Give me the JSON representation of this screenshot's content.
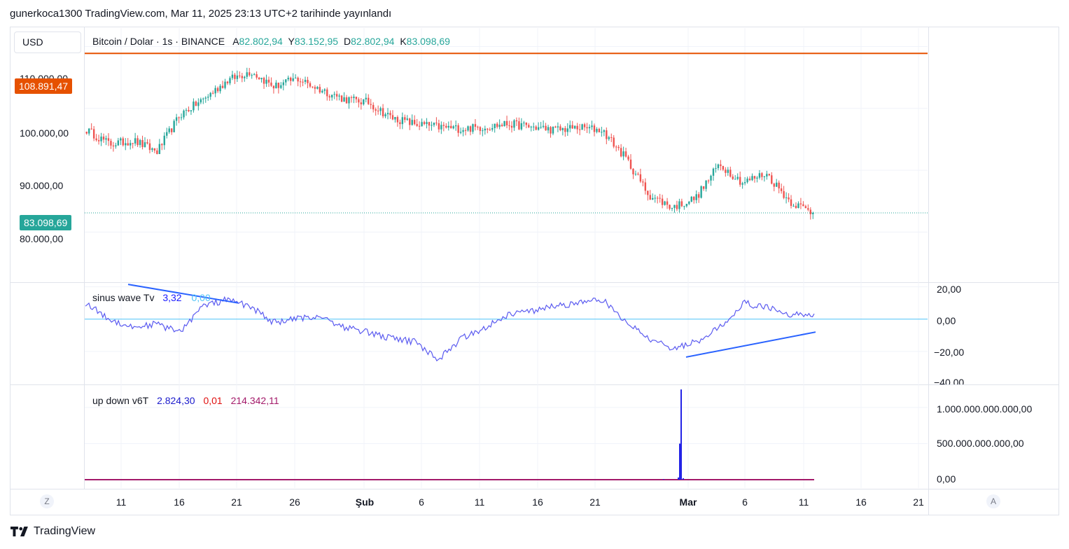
{
  "header": {
    "publisher_line": "gunerkoca1300 TradingView.com, Mar 11, 2025 23:13 UTC+2 tarihinde yayınlandı"
  },
  "currency_button": "USD",
  "price_pane": {
    "symbol": "Bitcoin / Dolar · 1s · BINANCE",
    "ohlc": [
      {
        "label": "A",
        "value": "82.802,94"
      },
      {
        "label": "Y",
        "value": "83.152,95"
      },
      {
        "label": "D",
        "value": "82.802,94"
      },
      {
        "label": "K",
        "value": "83.098,69"
      }
    ],
    "level_tag": "108.891,47",
    "last_price_tag": "83.098,69",
    "y_ticks": [
      "110.000,00",
      "100.000,00",
      "90.000,00",
      "80.000,00"
    ]
  },
  "osc_pane": {
    "name": "sinus wave Tv",
    "value1": "3,32",
    "value2": "0,00",
    "y_ticks": [
      "20,00",
      "0,00",
      "−20,00",
      "−40,00"
    ]
  },
  "vol_pane": {
    "name": "up down v6T",
    "value1": "2.824,30",
    "value2": "0,01",
    "value3": "214.342,11",
    "y_ticks": [
      "1.000.000.000.000,00",
      "500.000.000.000,00",
      "0,00"
    ]
  },
  "x_axis": {
    "labels": [
      "11",
      "16",
      "21",
      "26",
      "Şub",
      "6",
      "11",
      "16",
      "21",
      "Mar",
      "6",
      "11",
      "16",
      "21"
    ],
    "left_button": "Z",
    "right_button": "A"
  },
  "footer": {
    "brand": "TradingView"
  },
  "colors": {
    "up": "#26a69a",
    "down": "#ef5350",
    "level": "#e65100",
    "last": "#26a69a",
    "osc": "#5b5bf0",
    "zero": "#4fc3f7",
    "trend": "#2962ff",
    "vol_bar": "#2323e6",
    "vol_line": "#a31a6a"
  },
  "chart_data": [
    {
      "type": "candlestick",
      "title": "Bitcoin / Dolar · 1s · BINANCE",
      "x": [
        "Jan 8",
        "Jan 10",
        "Jan 12",
        "Jan 14",
        "Jan 16",
        "Jan 18",
        "Jan 20",
        "Jan 22",
        "Jan 24",
        "Jan 26",
        "Jan 28",
        "Jan 30",
        "Feb 1",
        "Feb 3",
        "Feb 5",
        "Feb 7",
        "Feb 9",
        "Feb 11",
        "Feb 13",
        "Feb 15",
        "Feb 17",
        "Feb 19",
        "Feb 21",
        "Feb 23",
        "Feb 25",
        "Feb 27",
        "Mar 1",
        "Mar 3",
        "Mar 5",
        "Mar 7",
        "Mar 9",
        "Mar 11"
      ],
      "close": [
        96500,
        94200,
        94800,
        93000,
        99000,
        101500,
        104500,
        106000,
        103500,
        104800,
        103000,
        101500,
        101000,
        98500,
        97500,
        97000,
        96700,
        97000,
        97500,
        97000,
        96500,
        96900,
        96500,
        92000,
        86000,
        84000,
        85500,
        91000,
        88000,
        89500,
        85000,
        83099
      ],
      "ylim": [
        72000,
        113000
      ],
      "level": 108891.47,
      "last": 83098.69
    },
    {
      "type": "line",
      "title": "sinus wave Tv",
      "x": [
        "Jan 8",
        "Jan 10",
        "Jan 12",
        "Jan 14",
        "Jan 16",
        "Jan 18",
        "Jan 20",
        "Jan 22",
        "Jan 24",
        "Jan 26",
        "Jan 28",
        "Jan 30",
        "Feb 1",
        "Feb 3",
        "Feb 5",
        "Feb 7",
        "Feb 9",
        "Feb 11",
        "Feb 13",
        "Feb 15",
        "Feb 17",
        "Feb 19",
        "Feb 21",
        "Feb 23",
        "Feb 25",
        "Feb 27",
        "Mar 1",
        "Mar 3",
        "Mar 5",
        "Mar 7",
        "Mar 9",
        "Mar 11"
      ],
      "values": [
        10,
        0,
        -5,
        -3,
        -8,
        8,
        12,
        8,
        -2,
        0,
        2,
        -5,
        -8,
        -12,
        -14,
        -25,
        -12,
        -5,
        3,
        5,
        8,
        10,
        12,
        -2,
        -12,
        -18,
        -14,
        -5,
        10,
        7,
        3,
        3.32
      ],
      "ylim": [
        -40,
        22
      ]
    },
    {
      "type": "bar",
      "title": "up down v6T",
      "x": [
        "Feb 25",
        "Feb 26",
        "Feb 27",
        "Feb 28"
      ],
      "values": [
        30000000000,
        500000000000,
        1250000000000,
        20000000000
      ],
      "ylim": [
        0,
        1300000000000
      ]
    }
  ]
}
